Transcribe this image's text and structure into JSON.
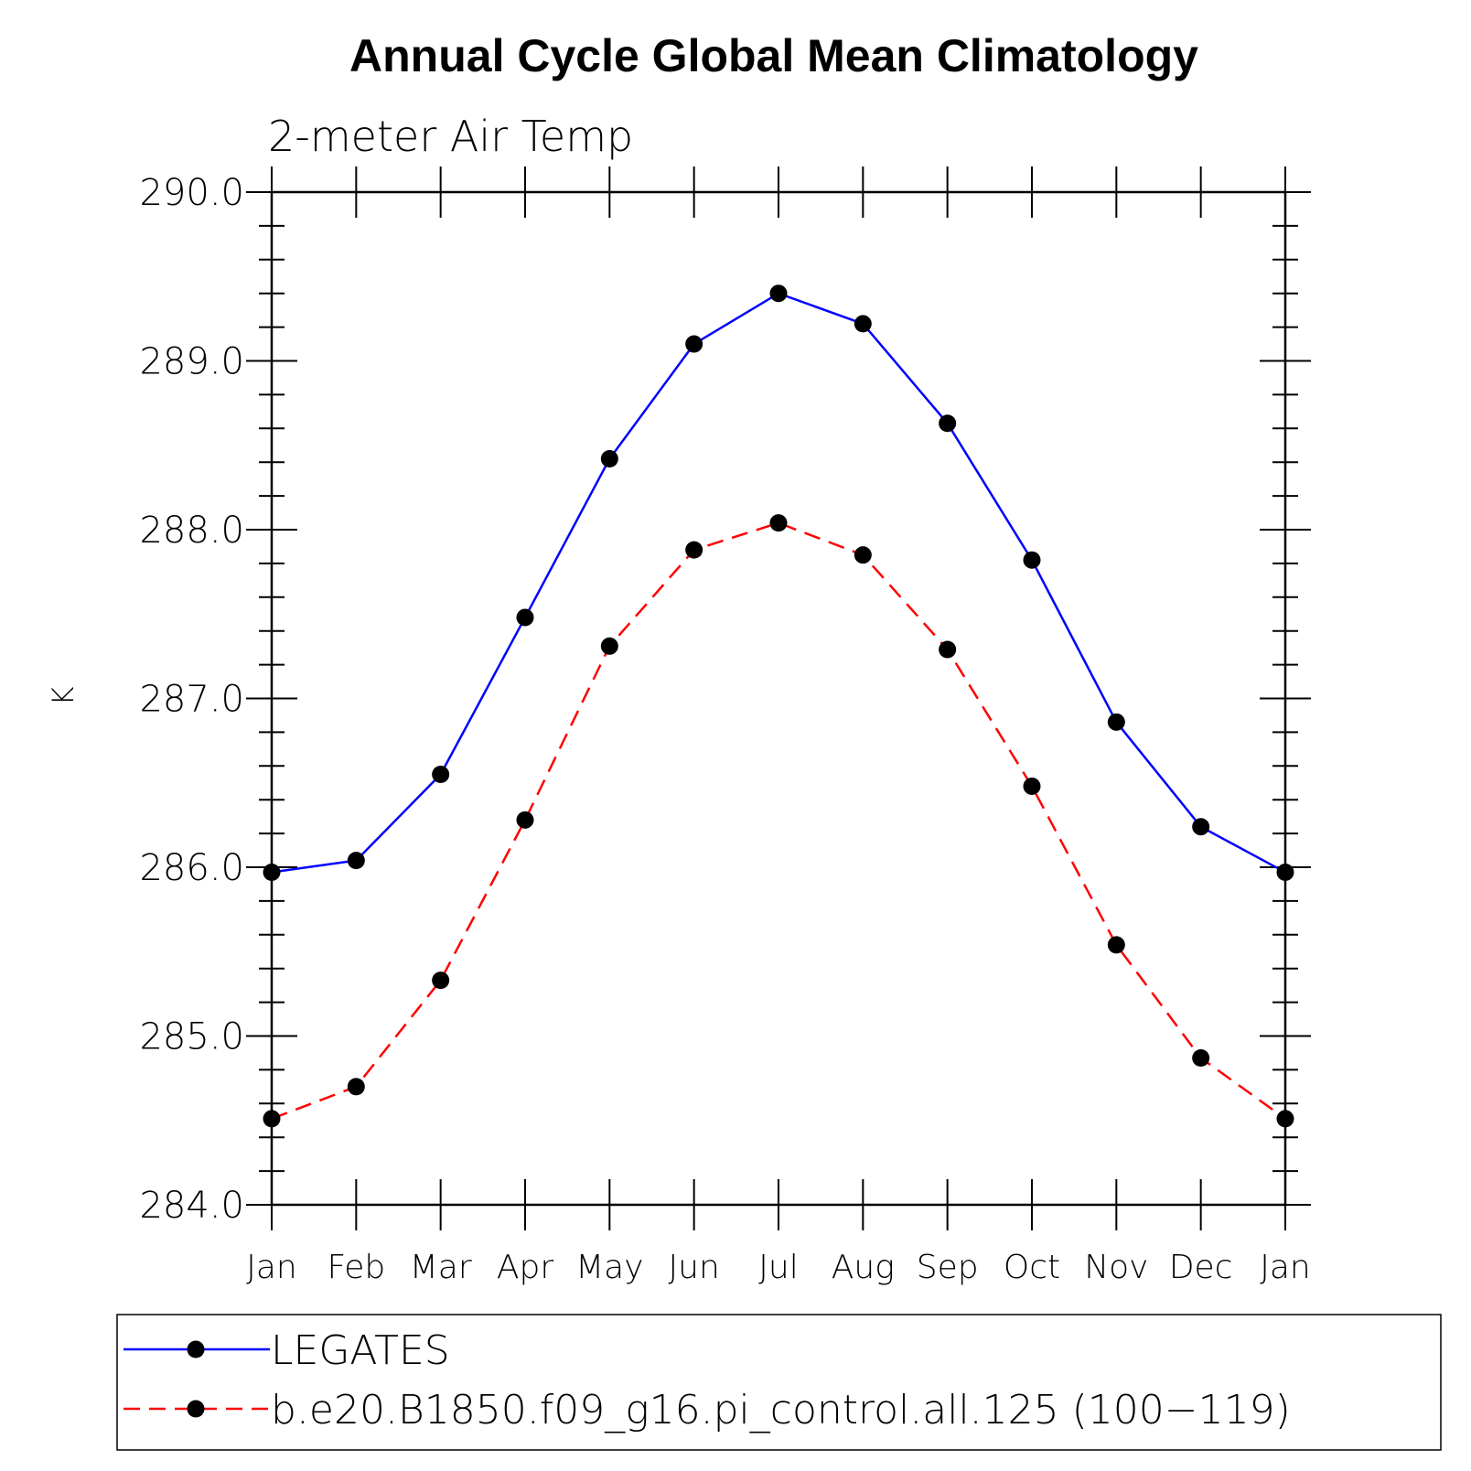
{
  "chart_data": {
    "type": "line",
    "title": "Annual Cycle Global Mean Climatology",
    "subtitle": "2-meter Air Temp",
    "ylabel": "K",
    "xlabel": "",
    "categories": [
      "Jan",
      "Feb",
      "Mar",
      "Apr",
      "May",
      "Jun",
      "Jul",
      "Aug",
      "Sep",
      "Oct",
      "Nov",
      "Dec",
      "Jan"
    ],
    "ylim": [
      284.0,
      290.0
    ],
    "yticks": [
      "284.0",
      "285.0",
      "286.0",
      "287.0",
      "288.0",
      "289.0",
      "290.0"
    ],
    "grid": false,
    "legend_position": "bottom",
    "series": [
      {
        "name": "LEGATES",
        "color": "#0000ff",
        "dash": "solid",
        "marker": "circle",
        "values": [
          285.97,
          286.04,
          286.55,
          287.48,
          288.42,
          289.1,
          289.4,
          289.22,
          288.63,
          287.82,
          286.86,
          286.24,
          285.97
        ]
      },
      {
        "name": "b.e20.B1850.f09_g16.pi_control.all.125 (100−119)",
        "color": "#ff0000",
        "dash": "dashed",
        "marker": "circle",
        "values": [
          284.51,
          284.7,
          285.33,
          286.28,
          287.31,
          287.88,
          288.04,
          287.85,
          287.29,
          286.48,
          285.54,
          284.87,
          284.51
        ]
      }
    ]
  }
}
